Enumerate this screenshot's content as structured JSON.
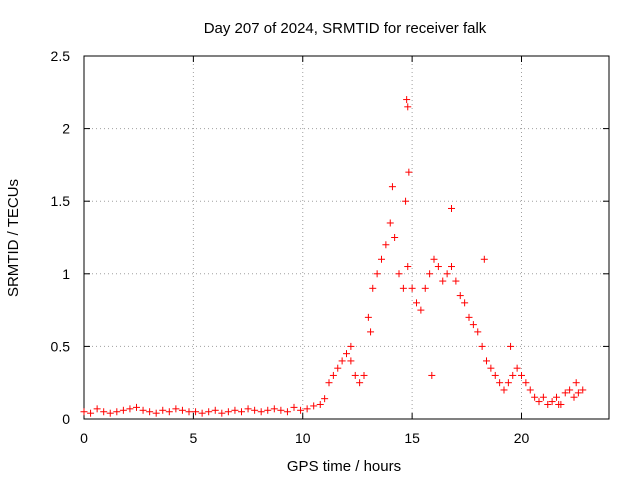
{
  "chart_data": {
    "type": "scatter",
    "title": "Day 207 of 2024, SRMTID for receiver falk",
    "xlabel": "GPS time / hours",
    "ylabel": "SRMTID / TECUs",
    "xlim": [
      0,
      24
    ],
    "ylim": [
      0,
      2.5
    ],
    "xticks": [
      0,
      5,
      10,
      15,
      20
    ],
    "yticks": [
      0,
      0.5,
      1,
      1.5,
      2,
      2.5
    ],
    "xtick_labels": [
      "0",
      "5",
      "10",
      "15",
      "20"
    ],
    "ytick_labels": [
      "0",
      "0.5",
      "1",
      "1.5",
      "2",
      "2.5"
    ],
    "grid": true,
    "marker": "+",
    "color": "#ff0000",
    "series": [
      {
        "name": "SRMTID",
        "x": [
          0.0,
          0.3,
          0.6,
          0.9,
          1.2,
          1.5,
          1.8,
          2.1,
          2.4,
          2.7,
          3.0,
          3.3,
          3.6,
          3.9,
          4.2,
          4.5,
          4.8,
          5.1,
          5.4,
          5.7,
          6.0,
          6.3,
          6.6,
          6.9,
          7.2,
          7.5,
          7.8,
          8.1,
          8.4,
          8.7,
          9.0,
          9.3,
          9.6,
          9.9,
          10.2,
          10.5,
          10.8,
          11.0,
          11.2,
          11.4,
          11.6,
          11.8,
          12.0,
          12.2,
          12.4,
          12.6,
          12.8,
          13.0,
          13.2,
          13.4,
          13.6,
          13.8,
          14.0,
          14.2,
          14.4,
          14.6,
          14.8,
          15.0,
          15.2,
          15.4,
          15.6,
          15.8,
          16.0,
          16.2,
          16.4,
          16.6,
          16.8,
          17.0,
          17.2,
          17.4,
          17.6,
          17.8,
          18.0,
          18.2,
          18.4,
          18.6,
          18.8,
          19.0,
          19.2,
          19.4,
          19.6,
          19.8,
          20.0,
          20.2,
          20.4,
          20.6,
          20.8,
          21.0,
          21.2,
          21.4,
          21.6,
          21.8,
          22.0,
          22.2,
          22.4,
          22.6,
          22.8,
          14.75,
          14.8,
          14.85,
          14.7,
          12.2,
          13.1,
          14.1,
          15.9,
          16.8,
          18.3,
          19.5,
          21.7,
          22.5
        ],
        "y": [
          0.05,
          0.04,
          0.07,
          0.05,
          0.04,
          0.05,
          0.06,
          0.07,
          0.08,
          0.06,
          0.05,
          0.04,
          0.06,
          0.05,
          0.07,
          0.06,
          0.05,
          0.05,
          0.04,
          0.05,
          0.06,
          0.04,
          0.05,
          0.06,
          0.05,
          0.07,
          0.06,
          0.05,
          0.06,
          0.07,
          0.06,
          0.05,
          0.08,
          0.06,
          0.07,
          0.09,
          0.1,
          0.14,
          0.25,
          0.3,
          0.35,
          0.4,
          0.45,
          0.4,
          0.3,
          0.25,
          0.3,
          0.7,
          0.9,
          1.0,
          1.1,
          1.2,
          1.35,
          1.25,
          1.0,
          0.9,
          1.05,
          0.9,
          0.8,
          0.75,
          0.9,
          1.0,
          1.1,
          1.05,
          0.95,
          1.0,
          1.05,
          0.95,
          0.85,
          0.8,
          0.7,
          0.65,
          0.6,
          0.5,
          0.4,
          0.35,
          0.3,
          0.25,
          0.2,
          0.25,
          0.3,
          0.35,
          0.3,
          0.25,
          0.2,
          0.15,
          0.12,
          0.15,
          0.1,
          0.12,
          0.15,
          0.1,
          0.18,
          0.2,
          0.15,
          0.18,
          0.2,
          2.2,
          2.15,
          1.7,
          1.5,
          0.5,
          0.6,
          1.6,
          0.3,
          1.45,
          1.1,
          0.5,
          0.1,
          0.25
        ]
      }
    ]
  }
}
